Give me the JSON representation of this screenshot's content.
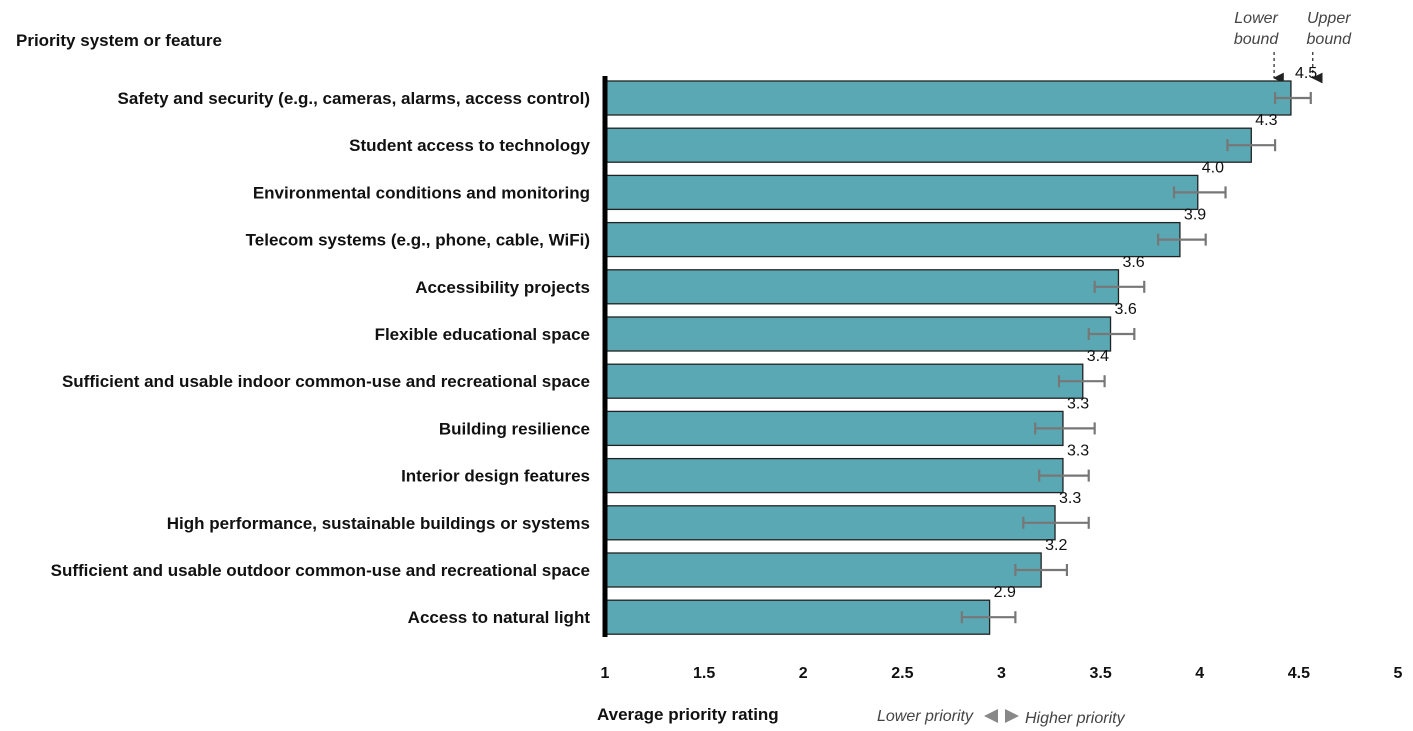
{
  "chart_data": {
    "type": "bar",
    "orientation": "horizontal",
    "y_heading": "Priority system or feature",
    "xlabel": "Average priority rating",
    "xlim": [
      1,
      5
    ],
    "x_ticks": [
      "1",
      "1.5",
      "2",
      "2.5",
      "3",
      "3.5",
      "4",
      "4.5",
      "5"
    ],
    "direction_note": {
      "lower": "Lower priority",
      "higher": "Higher priority"
    },
    "annotations": {
      "lower_bound": "Lower bound",
      "upper_bound": "Upper bound"
    },
    "bar_color": "#5aa8b3",
    "error_bar_color": "#777777",
    "categories": [
      "Safety and security (e.g., cameras, alarms, access control)",
      "Student access to technology",
      "Environmental conditions and monitoring",
      "Telecom systems (e.g., phone, cable, WiFi)",
      "Accessibility projects",
      "Flexible educational space",
      "Sufficient and usable indoor common-use and recreational space",
      "Building resilience",
      "Interior design features",
      "High performance, sustainable buildings or systems",
      "Sufficient and usable outdoor common-use and recreational space",
      "Access to natural light"
    ],
    "values": [
      4.46,
      4.26,
      3.99,
      3.9,
      3.59,
      3.55,
      3.41,
      3.31,
      3.31,
      3.27,
      3.2,
      2.94
    ],
    "value_labels": [
      "4.5",
      "4.3",
      "4.0",
      "3.9",
      "3.6",
      "3.6",
      "3.4",
      "3.3",
      "3.3",
      "3.3",
      "3.2",
      "2.9"
    ],
    "lower_bounds": [
      4.38,
      4.14,
      3.87,
      3.79,
      3.47,
      3.44,
      3.29,
      3.17,
      3.19,
      3.11,
      3.07,
      2.8
    ],
    "upper_bounds": [
      4.56,
      4.38,
      4.13,
      4.03,
      3.72,
      3.67,
      3.52,
      3.47,
      3.44,
      3.44,
      3.33,
      3.07
    ]
  }
}
